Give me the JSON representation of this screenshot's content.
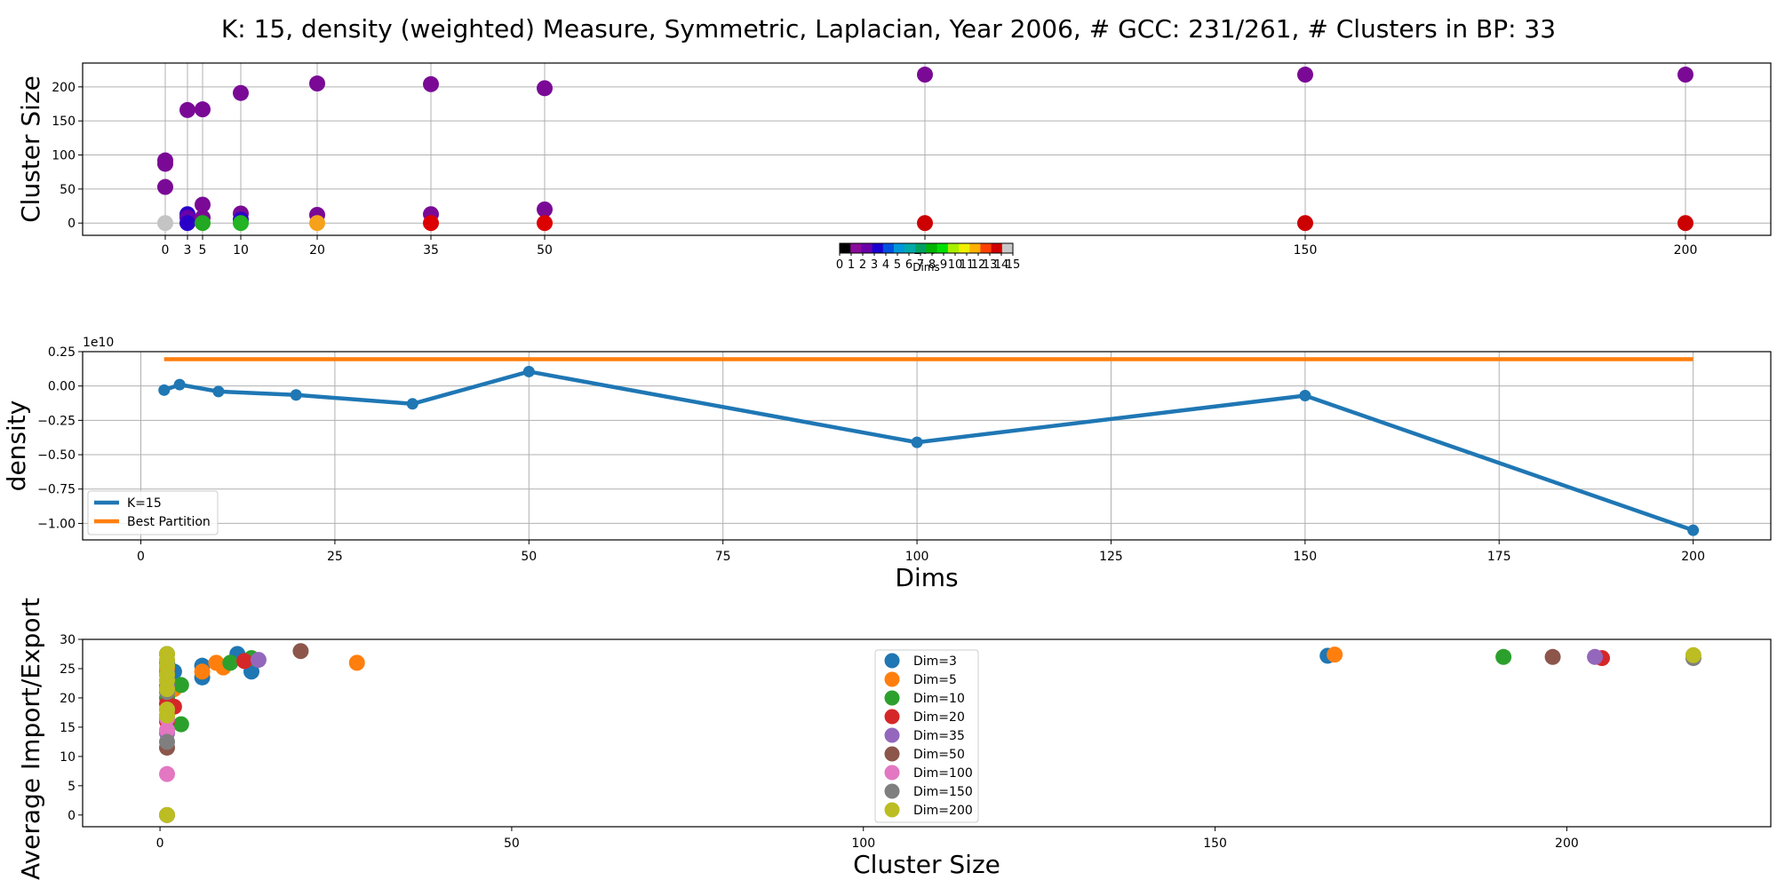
{
  "figure": {
    "title": "K: 15, density (weighted) Measure, Symmetric, Laplacian, Year 2006, # GCC: 231/261, # Clusters in BP: 33"
  },
  "chart_data": [
    {
      "id": "cluster-size",
      "type": "scatter",
      "ylabel": "Cluster Size",
      "xlabel": "",
      "x_categories": [
        "0",
        "3",
        "5",
        "10",
        "20",
        "35",
        "50",
        "100",
        "150",
        "200"
      ],
      "y_ticks": [
        "0",
        "50",
        "100",
        "150",
        "200"
      ],
      "ylim": [
        -18,
        235
      ],
      "grid": true,
      "colorbar": {
        "label": "Dims",
        "ticks": [
          "0",
          "1",
          "2",
          "3",
          "4",
          "5",
          "6",
          "7",
          "8",
          "9",
          "10",
          "11",
          "12",
          "13",
          "14",
          "15"
        ],
        "colors": [
          "#000000",
          "#8a0a9a",
          "#6a00a8",
          "#1a00d0",
          "#0050e0",
          "#0098d8",
          "#00aaa8",
          "#00a060",
          "#00b400",
          "#00e000",
          "#a8f000",
          "#f0f000",
          "#ffb000",
          "#ff4000",
          "#d00000",
          "#c8c8c8"
        ]
      },
      "points": [
        {
          "x": "0",
          "y": 92,
          "color": "#7a0a96"
        },
        {
          "x": "0",
          "y": 87,
          "color": "#7a0a96"
        },
        {
          "x": "0",
          "y": 53,
          "color": "#7a0a96"
        },
        {
          "x": "0",
          "y": 0,
          "color": "#c4c4c4"
        },
        {
          "x": "3",
          "y": 166,
          "color": "#7a0a96"
        },
        {
          "x": "3",
          "y": 13,
          "color": "#2a00c8"
        },
        {
          "x": "3",
          "y": 8,
          "color": "#6a00a8"
        },
        {
          "x": "3",
          "y": 0,
          "color": "#2a00c8"
        },
        {
          "x": "5",
          "y": 167,
          "color": "#7a0a96"
        },
        {
          "x": "5",
          "y": 27,
          "color": "#7a0a96"
        },
        {
          "x": "5",
          "y": 8,
          "color": "#7a0a96"
        },
        {
          "x": "5",
          "y": 0,
          "color": "#22a822"
        },
        {
          "x": "10",
          "y": 191,
          "color": "#7a0a96"
        },
        {
          "x": "10",
          "y": 14,
          "color": "#7a0a96"
        },
        {
          "x": "10",
          "y": 5,
          "color": "#2a00c8"
        },
        {
          "x": "10",
          "y": 0,
          "color": "#22b422"
        },
        {
          "x": "20",
          "y": 205,
          "color": "#7a0a96"
        },
        {
          "x": "20",
          "y": 12,
          "color": "#7a0a96"
        },
        {
          "x": "20",
          "y": 0,
          "color": "#f5a21a"
        },
        {
          "x": "35",
          "y": 204,
          "color": "#7a0a96"
        },
        {
          "x": "35",
          "y": 13,
          "color": "#7a0a96"
        },
        {
          "x": "35",
          "y": 0,
          "color": "#dd0000"
        },
        {
          "x": "50",
          "y": 198,
          "color": "#7a0a96"
        },
        {
          "x": "50",
          "y": 20,
          "color": "#7a0a96"
        },
        {
          "x": "50",
          "y": 0,
          "color": "#dd0000"
        },
        {
          "x": "100",
          "y": 218,
          "color": "#7a0a96"
        },
        {
          "x": "100",
          "y": 0,
          "color": "#cc0000"
        },
        {
          "x": "150",
          "y": 218,
          "color": "#7a0a96"
        },
        {
          "x": "150",
          "y": 0,
          "color": "#cc0000"
        },
        {
          "x": "200",
          "y": 218,
          "color": "#7a0a96"
        },
        {
          "x": "200",
          "y": 0,
          "color": "#cc0000"
        }
      ]
    },
    {
      "id": "density",
      "type": "line",
      "ylabel": "density",
      "xlabel": "Dims",
      "offset_text": "1e10",
      "xlim": [
        -7.5,
        210
      ],
      "ylim": [
        -1.12,
        0.25
      ],
      "x_ticks": [
        0,
        25,
        50,
        75,
        100,
        125,
        150,
        175,
        200
      ],
      "y_ticks": [
        -1.0,
        -0.75,
        -0.5,
        -0.25,
        0.0,
        0.25
      ],
      "y_tick_labels": [
        "−1.00",
        "−0.75",
        "−0.50",
        "−0.25",
        "0.00",
        "0.25"
      ],
      "grid": true,
      "legend_position": "lower-left",
      "series": [
        {
          "name": "K=15",
          "color": "#1f77b4",
          "markers": true,
          "x": [
            3,
            5,
            10,
            20,
            35,
            50,
            100,
            150,
            200
          ],
          "y": [
            -0.03,
            0.01,
            -0.04,
            -0.065,
            -0.13,
            0.105,
            -0.41,
            -0.07,
            -1.05
          ]
        },
        {
          "name": "Best Partition",
          "color": "#ff7f0e",
          "markers": false,
          "x": [
            3,
            200
          ],
          "y": [
            0.195,
            0.195
          ]
        }
      ]
    },
    {
      "id": "import-export",
      "type": "scatter",
      "ylabel": "Average Import/Export",
      "xlabel": "Cluster Size",
      "xlim": [
        -11,
        229
      ],
      "ylim": [
        -2,
        30
      ],
      "x_ticks": [
        0,
        50,
        100,
        150,
        200
      ],
      "y_ticks": [
        0,
        5,
        10,
        15,
        20,
        25,
        30
      ],
      "grid": false,
      "legend_position": "center",
      "series": [
        {
          "name": "Dim=3",
          "color": "#1f77b4",
          "points": [
            [
              1,
              27.5
            ],
            [
              1,
              26
            ],
            [
              1,
              24.5
            ],
            [
              1,
              22
            ],
            [
              2,
              24.5
            ],
            [
              6,
              25.5
            ],
            [
              6,
              23.5
            ],
            [
              11,
              27.5
            ],
            [
              13,
              24.5
            ],
            [
              166,
              27.2
            ]
          ]
        },
        {
          "name": "Dim=5",
          "color": "#ff7f0e",
          "points": [
            [
              1,
              25
            ],
            [
              1,
              23
            ],
            [
              2,
              21.5
            ],
            [
              6,
              24.5
            ],
            [
              8,
              26
            ],
            [
              9,
              25.2
            ],
            [
              167,
              27.4
            ],
            [
              28,
              26
            ]
          ]
        },
        {
          "name": "Dim=10",
          "color": "#2ca02c",
          "points": [
            [
              1,
              20
            ],
            [
              1,
              17
            ],
            [
              3,
              22.2
            ],
            [
              3,
              15.5
            ],
            [
              10,
              26
            ],
            [
              13,
              26.8
            ],
            [
              191,
              27
            ]
          ]
        },
        {
          "name": "Dim=20",
          "color": "#d62728",
          "points": [
            [
              1,
              19
            ],
            [
              2,
              18.5
            ],
            [
              1,
              16
            ],
            [
              12,
              26.3
            ],
            [
              205,
              26.8
            ]
          ]
        },
        {
          "name": "Dim=35",
          "color": "#9467bd",
          "points": [
            [
              1,
              22
            ],
            [
              1,
              18
            ],
            [
              1,
              14
            ],
            [
              14,
              26.5
            ],
            [
              204,
              27
            ]
          ]
        },
        {
          "name": "Dim=50",
          "color": "#8c564b",
          "points": [
            [
              1,
              24
            ],
            [
              1,
              11.5
            ],
            [
              20,
              28
            ],
            [
              198,
              27
            ]
          ]
        },
        {
          "name": "Dim=100",
          "color": "#e377c2",
          "points": [
            [
              1,
              16.5
            ],
            [
              1,
              14.5
            ],
            [
              1,
              7
            ],
            [
              1,
              0
            ]
          ]
        },
        {
          "name": "Dim=150",
          "color": "#7f7f7f",
          "points": [
            [
              1,
              21
            ],
            [
              1,
              12.5
            ],
            [
              1,
              0
            ],
            [
              218,
              26.8
            ]
          ]
        },
        {
          "name": "Dim=200",
          "color": "#bcbd22",
          "points": [
            [
              1,
              27.5
            ],
            [
              1,
              26.5
            ],
            [
              1,
              25.5
            ],
            [
              1,
              24
            ],
            [
              1,
              23
            ],
            [
              1,
              21.5
            ],
            [
              1,
              18
            ],
            [
              1,
              17
            ],
            [
              1,
              0
            ],
            [
              218,
              27.3
            ]
          ]
        }
      ]
    }
  ]
}
